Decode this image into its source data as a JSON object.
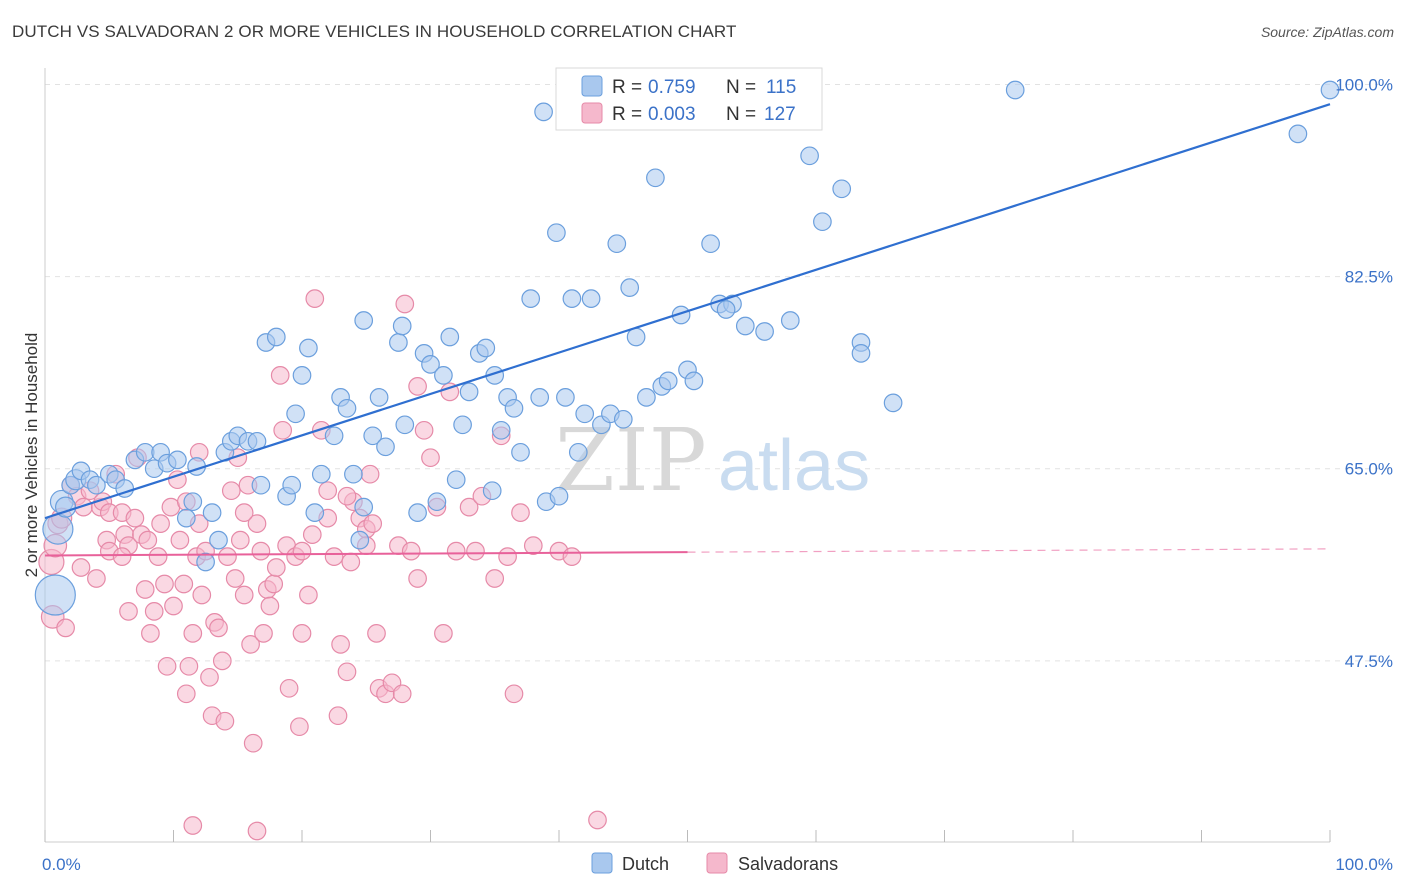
{
  "title": "DUTCH VS SALVADORAN 2 OR MORE VEHICLES IN HOUSEHOLD CORRELATION CHART",
  "source": "Source: ZipAtlas.com",
  "watermark": {
    "zip": "ZIP",
    "atlas": "atlas"
  },
  "colors": {
    "dutch_fill": "#a9c8ee",
    "dutch_stroke": "#6b9fdd",
    "dutch_line": "#2f6fd0",
    "salv_fill": "#f5b8cc",
    "salv_stroke": "#e68aa8",
    "salv_line": "#e8619a",
    "grid": "#e2e2e2",
    "axis_text": "#3b72c8"
  },
  "legend": {
    "r_label": "R =",
    "n_label": "N =",
    "dutch_r": "0.759",
    "dutch_n": "115",
    "salv_r": "0.003",
    "salv_n": "127"
  },
  "bottom_legend": {
    "dutch": "Dutch",
    "salv": "Salvadorans"
  },
  "chart_data": {
    "type": "scatter",
    "title": "DUTCH VS SALVADORAN 2 OR MORE VEHICLES IN HOUSEHOLD CORRELATION CHART",
    "xlabel": "",
    "ylabel": "2 or more Vehicles in Household",
    "xlim": [
      0,
      100
    ],
    "ylim": [
      31,
      101.5
    ],
    "x_tick_labels": [
      "0.0%",
      "100.0%"
    ],
    "y_ticks": [
      47.5,
      65.0,
      82.5,
      100.0
    ],
    "y_tick_labels": [
      "47.5%",
      "65.0%",
      "82.5%",
      "100.0%"
    ],
    "grid": true,
    "legend_position": "top-center",
    "series": [
      {
        "name": "Dutch",
        "trend": {
          "x": [
            0,
            100
          ],
          "y": [
            60.5,
            98.2
          ],
          "dashed_from": null
        },
        "points": [
          [
            0.8,
            53.5,
            16
          ],
          [
            1.0,
            59.5,
            12
          ],
          [
            1.3,
            62.0,
            9
          ],
          [
            1.6,
            61.5,
            8
          ],
          [
            2.0,
            63.5,
            7
          ],
          [
            2.4,
            64.0,
            8
          ],
          [
            2.8,
            64.8,
            7
          ],
          [
            3.5,
            64.0,
            7
          ],
          [
            4.0,
            63.5,
            7
          ],
          [
            5.0,
            64.5,
            7
          ],
          [
            5.5,
            64.0,
            7
          ],
          [
            6.2,
            63.2,
            7
          ],
          [
            7.0,
            65.8,
            7
          ],
          [
            7.8,
            66.5,
            7
          ],
          [
            8.5,
            65.0,
            7
          ],
          [
            9.0,
            66.5,
            7
          ],
          [
            9.5,
            65.5,
            7
          ],
          [
            10.3,
            65.8,
            7
          ],
          [
            11.0,
            60.5,
            7
          ],
          [
            11.5,
            62.0,
            7
          ],
          [
            11.8,
            65.2,
            7
          ],
          [
            12.5,
            56.5,
            7
          ],
          [
            13.0,
            61.0,
            7
          ],
          [
            13.5,
            58.5,
            7
          ],
          [
            14.0,
            66.5,
            7
          ],
          [
            14.5,
            67.5,
            7
          ],
          [
            15.0,
            68.0,
            7
          ],
          [
            15.8,
            67.5,
            7
          ],
          [
            16.5,
            67.5,
            7
          ],
          [
            16.8,
            63.5,
            7
          ],
          [
            17.2,
            76.5,
            7
          ],
          [
            18.0,
            77.0,
            7
          ],
          [
            18.8,
            62.5,
            7
          ],
          [
            19.2,
            63.5,
            7
          ],
          [
            19.5,
            70.0,
            7
          ],
          [
            20.0,
            73.5,
            7
          ],
          [
            20.5,
            76.0,
            7
          ],
          [
            21.0,
            61.0,
            7
          ],
          [
            21.5,
            64.5,
            7
          ],
          [
            22.5,
            68.0,
            7
          ],
          [
            23.0,
            71.5,
            7
          ],
          [
            23.5,
            70.5,
            7
          ],
          [
            24.0,
            64.5,
            7
          ],
          [
            24.5,
            58.5,
            7
          ],
          [
            24.8,
            61.5,
            7
          ],
          [
            24.8,
            78.5,
            7
          ],
          [
            25.5,
            68.0,
            7
          ],
          [
            26.0,
            71.5,
            7
          ],
          [
            26.5,
            67.0,
            7
          ],
          [
            27.5,
            76.5,
            7
          ],
          [
            27.8,
            78.0,
            7
          ],
          [
            28.0,
            69.0,
            7
          ],
          [
            29.0,
            61.0,
            7
          ],
          [
            29.5,
            75.5,
            7
          ],
          [
            30.0,
            74.5,
            7
          ],
          [
            30.5,
            62.0,
            7
          ],
          [
            31.0,
            73.5,
            7
          ],
          [
            31.5,
            77.0,
            7
          ],
          [
            32.0,
            64.0,
            7
          ],
          [
            32.5,
            69.0,
            7
          ],
          [
            33.0,
            72.0,
            7
          ],
          [
            33.8,
            75.5,
            7
          ],
          [
            34.3,
            76.0,
            7
          ],
          [
            34.8,
            63.0,
            7
          ],
          [
            35.0,
            73.5,
            7
          ],
          [
            35.5,
            68.5,
            7
          ],
          [
            36.0,
            71.5,
            7
          ],
          [
            36.5,
            70.5,
            7
          ],
          [
            37.0,
            66.5,
            7
          ],
          [
            37.8,
            80.5,
            7
          ],
          [
            38.5,
            71.5,
            7
          ],
          [
            38.8,
            97.5,
            7
          ],
          [
            39.0,
            62.0,
            7
          ],
          [
            39.8,
            86.5,
            7
          ],
          [
            40.0,
            62.5,
            7
          ],
          [
            40.5,
            71.5,
            7
          ],
          [
            41.0,
            80.5,
            7
          ],
          [
            41.5,
            66.5,
            7
          ],
          [
            42.0,
            70.0,
            7
          ],
          [
            42.5,
            80.5,
            7
          ],
          [
            43.3,
            69.0,
            7
          ],
          [
            44.0,
            70.0,
            7
          ],
          [
            44.5,
            85.5,
            7
          ],
          [
            45.0,
            69.5,
            7
          ],
          [
            45.5,
            81.5,
            7
          ],
          [
            46.0,
            77.0,
            7
          ],
          [
            46.8,
            71.5,
            7
          ],
          [
            47.5,
            91.5,
            7
          ],
          [
            48.0,
            72.5,
            7
          ],
          [
            48.5,
            73.0,
            7
          ],
          [
            49.5,
            79.0,
            7
          ],
          [
            50.0,
            74.0,
            7
          ],
          [
            50.5,
            73.0,
            7
          ],
          [
            51.8,
            85.5,
            7
          ],
          [
            52.5,
            80.0,
            7
          ],
          [
            53.5,
            80.0,
            7
          ],
          [
            53.0,
            79.5,
            7
          ],
          [
            54.5,
            78.0,
            7
          ],
          [
            56.0,
            77.5,
            7
          ],
          [
            56.5,
            100.0,
            7
          ],
          [
            58.0,
            78.5,
            7
          ],
          [
            59.5,
            93.5,
            7
          ],
          [
            60.5,
            87.5,
            7
          ],
          [
            62.0,
            90.5,
            7
          ],
          [
            63.5,
            76.5,
            7
          ],
          [
            63.5,
            75.5,
            7
          ],
          [
            66.0,
            71.0,
            7
          ],
          [
            75.5,
            99.5,
            7
          ],
          [
            100.0,
            99.5,
            7
          ],
          [
            97.5,
            95.5,
            7
          ]
        ]
      },
      {
        "name": "Salvadorans",
        "trend": {
          "x": [
            0,
            100
          ],
          "y": [
            57.1,
            57.7
          ],
          "dashed_from": 50
        },
        "points": [
          [
            0.5,
            56.5,
            10
          ],
          [
            0.6,
            51.5,
            9
          ],
          [
            0.8,
            58.0,
            9
          ],
          [
            1.0,
            60.0,
            8
          ],
          [
            1.3,
            60.5,
            8
          ],
          [
            1.6,
            50.5,
            7
          ],
          [
            2.0,
            63.5,
            7
          ],
          [
            2.5,
            62.5,
            7
          ],
          [
            2.8,
            56.0,
            7
          ],
          [
            3.0,
            61.5,
            7
          ],
          [
            3.5,
            63.0,
            7
          ],
          [
            4.0,
            55.0,
            7
          ],
          [
            4.3,
            61.5,
            7
          ],
          [
            4.5,
            62.0,
            7
          ],
          [
            4.8,
            58.5,
            7
          ],
          [
            5.0,
            61.0,
            7
          ],
          [
            5.5,
            64.5,
            7
          ],
          [
            6.0,
            61.0,
            7
          ],
          [
            6.2,
            59.0,
            7
          ],
          [
            6.5,
            58.0,
            7
          ],
          [
            6.5,
            52.0,
            7
          ],
          [
            7.0,
            60.5,
            7
          ],
          [
            7.2,
            66.0,
            7
          ],
          [
            7.5,
            59.0,
            7
          ],
          [
            7.8,
            54.0,
            7
          ],
          [
            8.0,
            58.5,
            7
          ],
          [
            8.2,
            50.0,
            7
          ],
          [
            8.5,
            52.0,
            7
          ],
          [
            8.8,
            57.0,
            7
          ],
          [
            9.0,
            60.0,
            7
          ],
          [
            9.3,
            54.5,
            7
          ],
          [
            9.5,
            47.0,
            7
          ],
          [
            9.8,
            61.5,
            7
          ],
          [
            10.0,
            52.5,
            7
          ],
          [
            10.3,
            64.0,
            7
          ],
          [
            10.5,
            58.5,
            7
          ],
          [
            10.8,
            54.5,
            7
          ],
          [
            11.0,
            44.5,
            7
          ],
          [
            11.2,
            47.0,
            7
          ],
          [
            11.5,
            50.0,
            7
          ],
          [
            11.8,
            57.0,
            7
          ],
          [
            12.0,
            60.0,
            7
          ],
          [
            12.2,
            53.5,
            7
          ],
          [
            12.5,
            57.5,
            7
          ],
          [
            12.8,
            46.0,
            7
          ],
          [
            13.0,
            42.5,
            7
          ],
          [
            13.2,
            51.0,
            7
          ],
          [
            13.5,
            50.5,
            7
          ],
          [
            13.8,
            47.5,
            7
          ],
          [
            14.0,
            42.0,
            7
          ],
          [
            14.2,
            57.0,
            7
          ],
          [
            14.5,
            63.0,
            7
          ],
          [
            14.8,
            55.0,
            7
          ],
          [
            15.0,
            66.0,
            7
          ],
          [
            15.2,
            58.5,
            7
          ],
          [
            15.5,
            53.5,
            7
          ],
          [
            15.8,
            63.5,
            7
          ],
          [
            16.0,
            49.0,
            7
          ],
          [
            16.2,
            40.0,
            7
          ],
          [
            16.5,
            60.0,
            7
          ],
          [
            16.8,
            57.5,
            7
          ],
          [
            17.0,
            50.0,
            7
          ],
          [
            17.3,
            54.0,
            7
          ],
          [
            17.5,
            52.5,
            7
          ],
          [
            17.8,
            54.5,
            7
          ],
          [
            18.0,
            56.0,
            7
          ],
          [
            18.3,
            73.5,
            7
          ],
          [
            18.5,
            68.5,
            7
          ],
          [
            18.8,
            58.0,
            7
          ],
          [
            19.0,
            45.0,
            7
          ],
          [
            19.5,
            57.0,
            7
          ],
          [
            19.8,
            41.5,
            7
          ],
          [
            20.0,
            57.5,
            7
          ],
          [
            20.5,
            53.5,
            7
          ],
          [
            20.8,
            59.0,
            7
          ],
          [
            21.0,
            80.5,
            7
          ],
          [
            21.5,
            68.5,
            7
          ],
          [
            22.0,
            63.0,
            7
          ],
          [
            22.5,
            57.0,
            7
          ],
          [
            22.8,
            42.5,
            7
          ],
          [
            23.0,
            49.0,
            7
          ],
          [
            23.5,
            46.5,
            7
          ],
          [
            23.8,
            56.5,
            7
          ],
          [
            24.0,
            62.0,
            7
          ],
          [
            24.5,
            60.5,
            7
          ],
          [
            25.0,
            59.5,
            7
          ],
          [
            25.3,
            64.5,
            7
          ],
          [
            25.5,
            60.0,
            7
          ],
          [
            25.8,
            50.0,
            7
          ],
          [
            26.0,
            45.0,
            7
          ],
          [
            26.5,
            44.5,
            7
          ],
          [
            27.0,
            45.5,
            7
          ],
          [
            27.5,
            58.0,
            7
          ],
          [
            27.8,
            44.5,
            7
          ],
          [
            28.0,
            80.0,
            7
          ],
          [
            28.5,
            57.5,
            7
          ],
          [
            29.0,
            72.5,
            7
          ],
          [
            29.5,
            68.5,
            7
          ],
          [
            30.0,
            66.0,
            7
          ],
          [
            30.5,
            61.5,
            7
          ],
          [
            31.0,
            50.0,
            7
          ],
          [
            31.5,
            72.0,
            7
          ],
          [
            32.0,
            57.5,
            7
          ],
          [
            33.0,
            61.5,
            7
          ],
          [
            33.5,
            57.5,
            7
          ],
          [
            34.0,
            62.5,
            7
          ],
          [
            35.0,
            55.0,
            7
          ],
          [
            35.5,
            68.0,
            7
          ],
          [
            36.0,
            57.0,
            7
          ],
          [
            36.5,
            44.5,
            7
          ],
          [
            37.0,
            61.0,
            7
          ],
          [
            38.0,
            58.0,
            7
          ],
          [
            40.0,
            57.5,
            7
          ],
          [
            41.0,
            57.0,
            7
          ],
          [
            5.0,
            57.5,
            7
          ],
          [
            6.0,
            57.0,
            7
          ],
          [
            11.0,
            62.0,
            7
          ],
          [
            15.5,
            61.0,
            7
          ],
          [
            20.0,
            50.0,
            7
          ],
          [
            23.5,
            62.5,
            7
          ],
          [
            29.0,
            55.0,
            7
          ],
          [
            11.5,
            32.5,
            7
          ],
          [
            16.5,
            32.0,
            7
          ],
          [
            43.0,
            33.0,
            7
          ],
          [
            12.0,
            66.5,
            7
          ],
          [
            22.0,
            60.5,
            7
          ],
          [
            25.0,
            58.0,
            7
          ]
        ]
      }
    ]
  }
}
